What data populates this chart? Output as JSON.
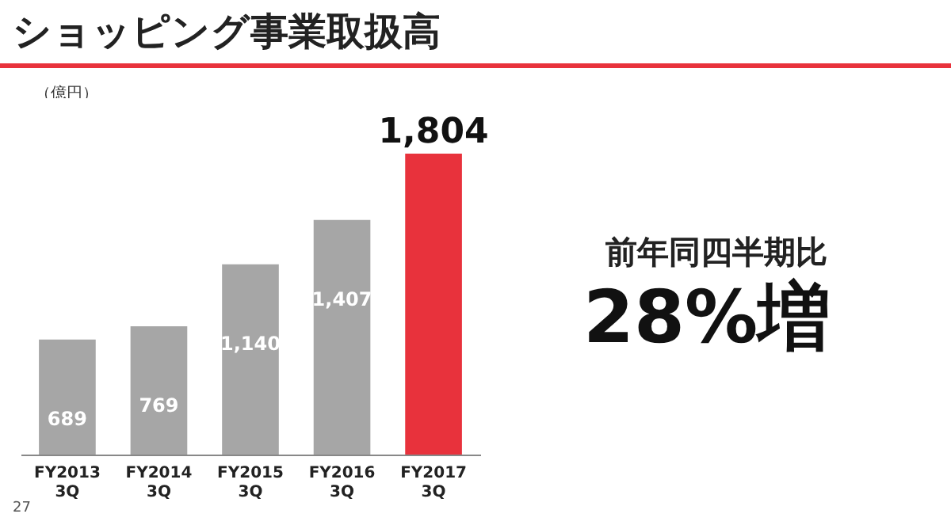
{
  "chart_data": {
    "type": "bar",
    "title": "ショッピング事業取扱高",
    "ylabel": "（億円）",
    "categories": [
      "FY2013 3Q",
      "FY2014 3Q",
      "FY2015 3Q",
      "FY2016 3Q",
      "FY2017 3Q"
    ],
    "values": [
      689,
      769,
      1140,
      1407,
      1804
    ],
    "colors": [
      "#a6a6a6",
      "#a6a6a6",
      "#a6a6a6",
      "#a6a6a6",
      "#e8323c"
    ],
    "value_labels": [
      "689",
      "769",
      "1,140",
      "1,407",
      "1,804"
    ],
    "annotations": [
      "前年同四半期比",
      "28%増",
      "27"
    ]
  }
}
